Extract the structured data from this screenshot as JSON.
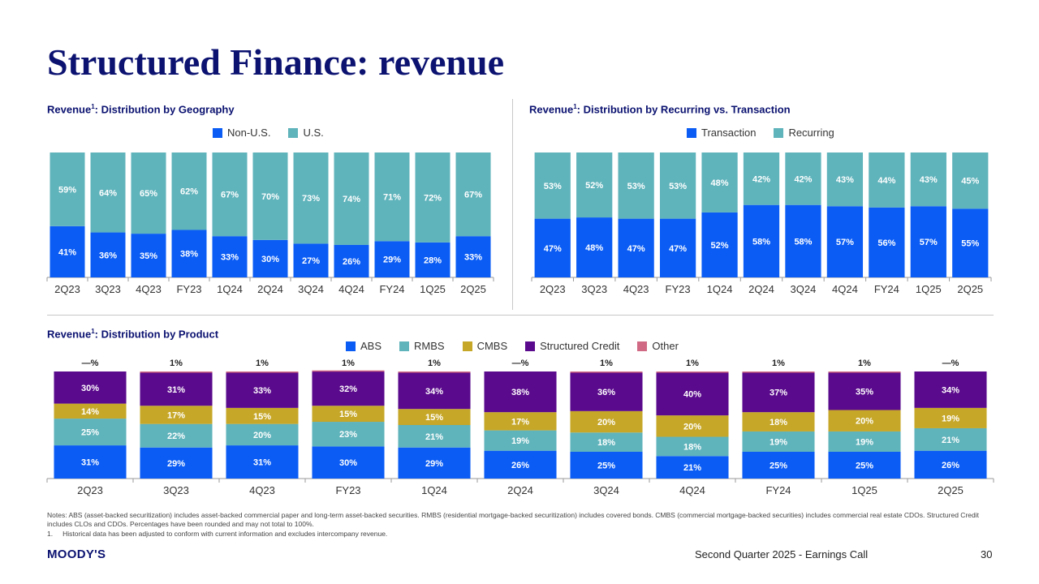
{
  "page": {
    "title": "Structured Finance: revenue",
    "footer": "Second Quarter 2025 - Earnings Call",
    "page_number": "30",
    "logo_text": "MOODY'S",
    "notes": "Notes: ABS (asset-backed securitization) includes asset-backed commercial paper and long-term asset-backed securities. RMBS (residential mortgage-backed securitization) includes covered bonds. CMBS (commercial mortgage-backed securities) includes commercial real estate CDOs. Structured Credit includes CLOs and CDOs. Percentages have been rounded and may not total to 100%.",
    "footnote_num": "1.",
    "footnote_text": "Historical data has been adjusted to conform with current information and excludes intercompany revenue."
  },
  "colors": {
    "blue": "#0a5cf5",
    "teal": "#5fb3bb",
    "gold": "#c6a728",
    "purple": "#5a0a8c",
    "pink": "#d06a84",
    "title_navy": "#0b1270"
  },
  "chart_data": [
    {
      "id": "geography",
      "type": "bar",
      "stacked": true,
      "title_prefix": "Revenue",
      "title_sup": "1",
      "title_suffix": ": Distribution by Geography",
      "categories": [
        "2Q23",
        "3Q23",
        "4Q23",
        "FY23",
        "1Q24",
        "2Q24",
        "3Q24",
        "4Q24",
        "FY24",
        "1Q25",
        "2Q25"
      ],
      "series": [
        {
          "name": "Non-U.S.",
          "color": "#0a5cf5",
          "values": [
            41,
            36,
            35,
            38,
            33,
            30,
            27,
            26,
            29,
            28,
            33
          ],
          "labels": [
            "41%",
            "36%",
            "35%",
            "38%",
            "33%",
            "30%",
            "27%",
            "26%",
            "29%",
            "28%",
            "33%"
          ]
        },
        {
          "name": "U.S.",
          "color": "#5fb3bb",
          "values": [
            59,
            64,
            65,
            62,
            67,
            70,
            73,
            74,
            71,
            72,
            67
          ],
          "labels": [
            "59%",
            "64%",
            "65%",
            "62%",
            "67%",
            "70%",
            "73%",
            "74%",
            "71%",
            "72%",
            "67%"
          ]
        }
      ],
      "ylim": [
        0,
        100
      ],
      "units": "%"
    },
    {
      "id": "recurring",
      "type": "bar",
      "stacked": true,
      "title_prefix": "Revenue",
      "title_sup": "1",
      "title_suffix": ": Distribution by Recurring vs. Transaction",
      "categories": [
        "2Q23",
        "3Q23",
        "4Q23",
        "FY23",
        "1Q24",
        "2Q24",
        "3Q24",
        "4Q24",
        "FY24",
        "1Q25",
        "2Q25"
      ],
      "series": [
        {
          "name": "Transaction",
          "color": "#0a5cf5",
          "values": [
            47,
            48,
            47,
            47,
            52,
            58,
            58,
            57,
            56,
            57,
            55
          ],
          "labels": [
            "47%",
            "48%",
            "47%",
            "47%",
            "52%",
            "58%",
            "58%",
            "57%",
            "56%",
            "57%",
            "55%"
          ]
        },
        {
          "name": "Recurring",
          "color": "#5fb3bb",
          "values": [
            53,
            52,
            53,
            53,
            48,
            42,
            42,
            43,
            44,
            43,
            45
          ],
          "labels": [
            "53%",
            "52%",
            "53%",
            "53%",
            "48%",
            "42%",
            "42%",
            "43%",
            "44%",
            "43%",
            "45%"
          ]
        }
      ],
      "ylim": [
        0,
        100
      ],
      "units": "%"
    },
    {
      "id": "product",
      "type": "bar",
      "stacked": true,
      "title_prefix": "Revenue",
      "title_sup": "1",
      "title_suffix": ": Distribution by Product",
      "categories": [
        "2Q23",
        "3Q23",
        "4Q23",
        "FY23",
        "1Q24",
        "2Q24",
        "3Q24",
        "4Q24",
        "FY24",
        "1Q25",
        "2Q25"
      ],
      "series": [
        {
          "name": "ABS",
          "color": "#0a5cf5",
          "values": [
            31,
            29,
            31,
            30,
            29,
            26,
            25,
            21,
            25,
            25,
            26
          ],
          "labels": [
            "31%",
            "29%",
            "31%",
            "30%",
            "29%",
            "26%",
            "25%",
            "21%",
            "25%",
            "25%",
            "26%"
          ]
        },
        {
          "name": "RMBS",
          "color": "#5fb3bb",
          "values": [
            25,
            22,
            20,
            23,
            21,
            19,
            18,
            18,
            19,
            19,
            21
          ],
          "labels": [
            "25%",
            "22%",
            "20%",
            "23%",
            "21%",
            "19%",
            "18%",
            "18%",
            "19%",
            "19%",
            "21%"
          ]
        },
        {
          "name": "CMBS",
          "color": "#c6a728",
          "values": [
            14,
            17,
            15,
            15,
            15,
            17,
            20,
            20,
            18,
            20,
            19
          ],
          "labels": [
            "14%",
            "17%",
            "15%",
            "15%",
            "15%",
            "17%",
            "20%",
            "20%",
            "18%",
            "20%",
            "19%"
          ]
        },
        {
          "name": "Structured Credit",
          "color": "#5a0a8c",
          "values": [
            30,
            31,
            33,
            32,
            34,
            38,
            36,
            40,
            37,
            35,
            34
          ],
          "labels": [
            "30%",
            "31%",
            "33%",
            "32%",
            "34%",
            "38%",
            "36%",
            "40%",
            "37%",
            "35%",
            "34%"
          ]
        },
        {
          "name": "Other",
          "color": "#d06a84",
          "values": [
            0,
            1,
            1,
            1,
            1,
            0,
            1,
            1,
            1,
            1,
            0
          ],
          "labels": [
            "—%",
            "1%",
            "1%",
            "1%",
            "1%",
            "—%",
            "1%",
            "1%",
            "1%",
            "1%",
            "—%"
          ]
        }
      ],
      "ylim": [
        0,
        100
      ],
      "units": "%"
    }
  ]
}
